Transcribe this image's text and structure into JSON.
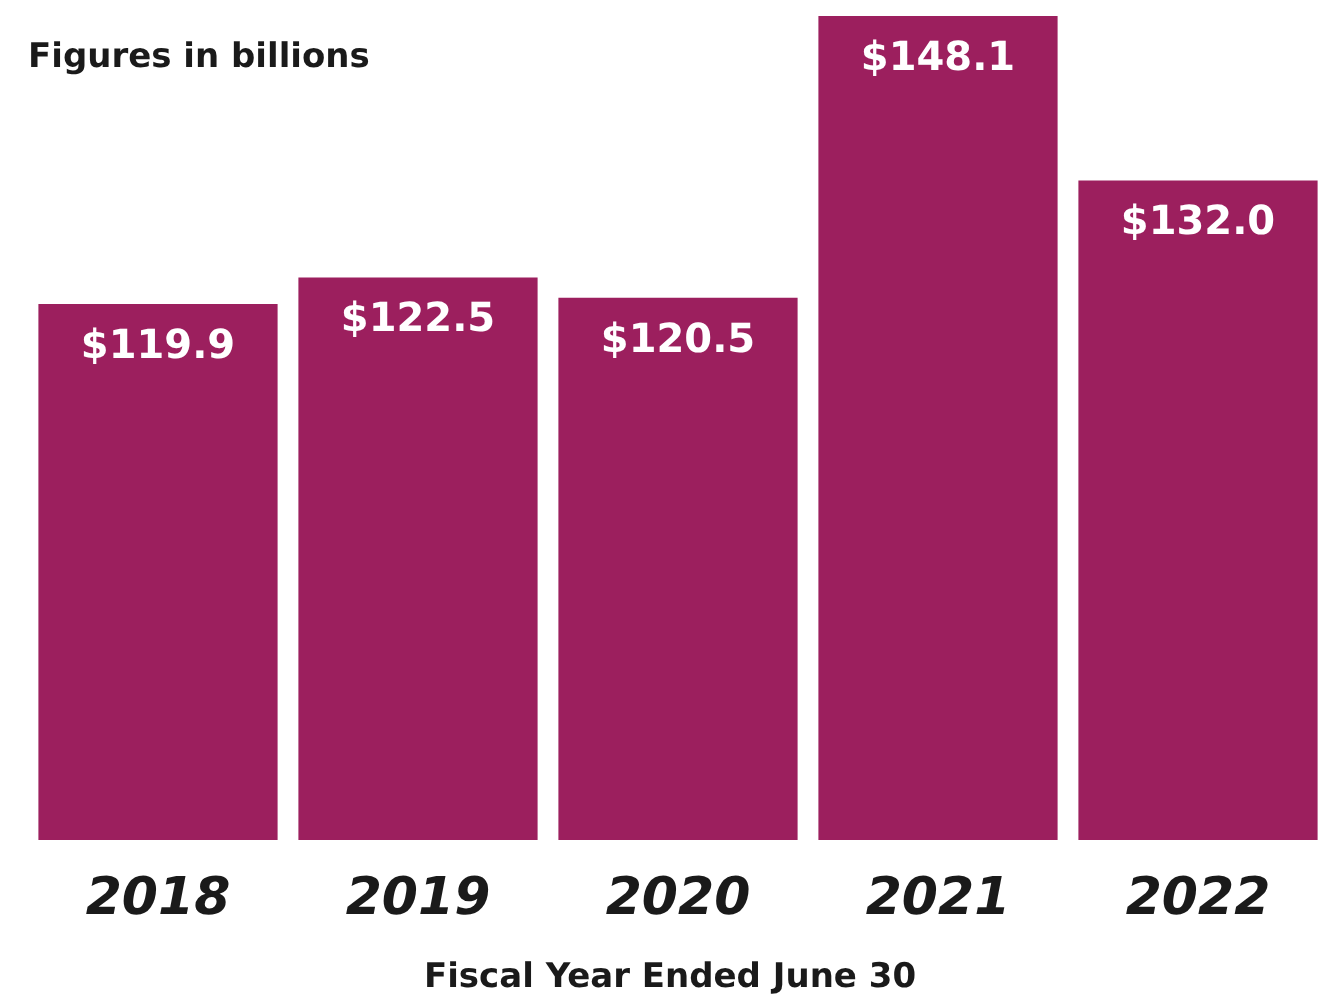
{
  "chart_data": {
    "type": "bar",
    "subtitle": "Figures in billions",
    "xlabel": "Fiscal Year Ended June 30",
    "categories": [
      "2018",
      "2019",
      "2020",
      "2021",
      "2022"
    ],
    "values": [
      119.9,
      122.5,
      120.5,
      148.1,
      132.0
    ],
    "value_labels": [
      "$119.9",
      "$122.5",
      "$120.5",
      "$148.1",
      "$132.0"
    ],
    "color": "#9c1f5e",
    "ylim": [
      67.4,
      148.1
    ]
  }
}
